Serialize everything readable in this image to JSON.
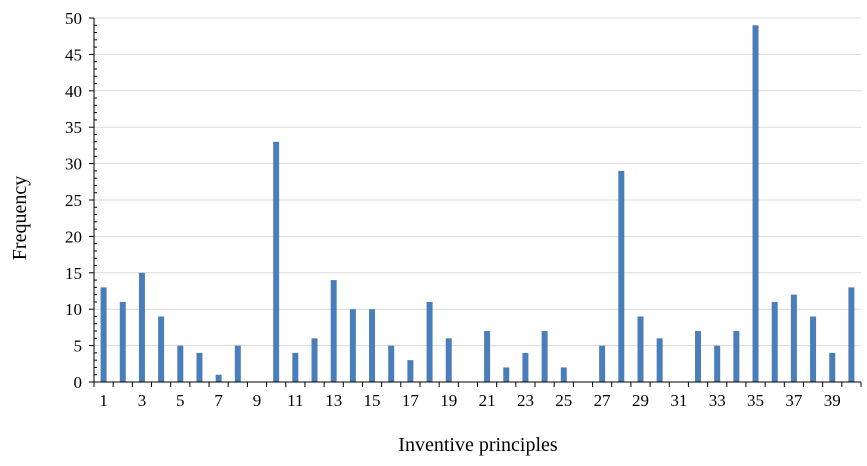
{
  "chart_data": {
    "type": "bar",
    "xlabel": "Inventive principles",
    "ylabel": "Frequency",
    "ylim": [
      0,
      50
    ],
    "yticks": [
      0,
      5,
      10,
      15,
      20,
      25,
      30,
      35,
      40,
      45,
      50
    ],
    "x_tick_labels": [
      "1",
      "3",
      "5",
      "7",
      "9",
      "11",
      "13",
      "15",
      "17",
      "19",
      "21",
      "23",
      "25",
      "27",
      "29",
      "31",
      "33",
      "35",
      "37",
      "39"
    ],
    "categories": [
      "1",
      "2",
      "3",
      "4",
      "5",
      "6",
      "7",
      "8",
      "9",
      "10",
      "11",
      "12",
      "13",
      "14",
      "15",
      "16",
      "17",
      "18",
      "19",
      "20",
      "21",
      "22",
      "23",
      "24",
      "25",
      "26",
      "27",
      "28",
      "29",
      "30",
      "31",
      "32",
      "33",
      "34",
      "35",
      "36",
      "37",
      "38",
      "39",
      "40"
    ],
    "values": [
      13,
      11,
      15,
      9,
      5,
      4,
      1,
      5,
      0,
      33,
      4,
      6,
      14,
      10,
      10,
      5,
      3,
      11,
      6,
      0,
      7,
      2,
      4,
      7,
      2,
      0,
      5,
      29,
      9,
      6,
      0,
      7,
      5,
      7,
      49,
      11,
      12,
      9,
      4,
      13
    ],
    "bar_color": "#4a7ebb",
    "grid": true,
    "gridline_color": "#d9d9d9",
    "legend": false
  }
}
